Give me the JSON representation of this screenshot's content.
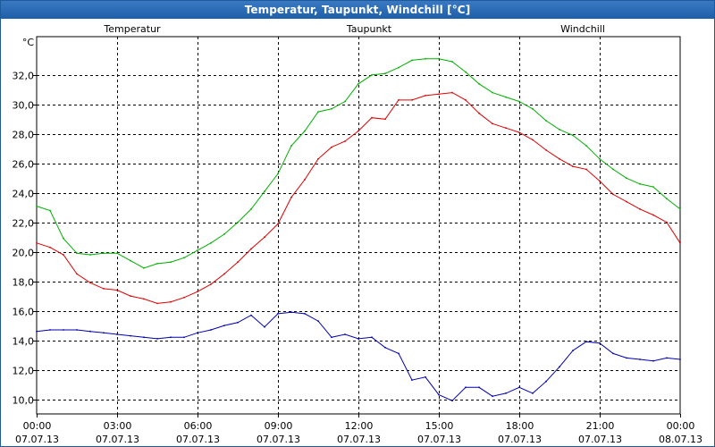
{
  "window": {
    "title": "Temperatur, Taupunkt, Windchill [°C]"
  },
  "chart_data": {
    "type": "line",
    "title": "Temperatur, Taupunkt, Windchill [°C]",
    "ylabel": "°C",
    "ylim": [
      9.0,
      34.6
    ],
    "xlim_hours": [
      0,
      24
    ],
    "grid": true,
    "y_ticks": [
      "10,0",
      "12,0",
      "14,0",
      "16,0",
      "18,0",
      "20,0",
      "22,0",
      "24,0",
      "26,0",
      "28,0",
      "30,0",
      "32,0"
    ],
    "x_ticks": [
      {
        "time": "00:00",
        "date": "07.07.13"
      },
      {
        "time": "03:00",
        "date": "07.07.13"
      },
      {
        "time": "06:00",
        "date": "07.07.13"
      },
      {
        "time": "09:00",
        "date": "07.07.13"
      },
      {
        "time": "12:00",
        "date": "07.07.13"
      },
      {
        "time": "15:00",
        "date": "07.07.13"
      },
      {
        "time": "18:00",
        "date": "07.07.13"
      },
      {
        "time": "21:00",
        "date": "07.07.13"
      },
      {
        "time": "00:00",
        "date": "08.07.13"
      }
    ],
    "legend_placement": "top",
    "series": [
      {
        "name": "Temperatur",
        "color": "#e00000",
        "x": [
          0,
          0.5,
          1,
          1.5,
          2,
          2.5,
          3,
          3.5,
          4,
          4.5,
          5,
          5.5,
          6,
          6.5,
          7,
          7.5,
          8,
          8.5,
          9,
          9.5,
          10,
          10.5,
          11,
          11.5,
          12,
          12.5,
          13,
          13.5,
          14,
          14.5,
          15,
          15.5,
          16,
          16.5,
          17,
          17.5,
          18,
          18.5,
          19,
          19.5,
          20,
          20.5,
          21,
          21.5,
          22,
          22.5,
          23,
          23.5,
          24
        ],
        "values": [
          20.6,
          20.3,
          19.8,
          18.5,
          17.9,
          17.5,
          17.4,
          17.0,
          16.8,
          16.5,
          16.6,
          16.9,
          17.3,
          17.8,
          18.5,
          19.3,
          20.2,
          21.0,
          21.9,
          23.7,
          24.9,
          26.3,
          27.1,
          27.5,
          28.2,
          29.1,
          29.0,
          30.3,
          30.3,
          30.6,
          30.7,
          30.8,
          30.3,
          29.4,
          28.7,
          28.4,
          28.1,
          27.6,
          26.9,
          26.3,
          25.8,
          25.6,
          24.8,
          23.9,
          23.4,
          22.9,
          22.5,
          22.0,
          20.6
        ]
      },
      {
        "name": "Taupunkt",
        "color": "#0000b0",
        "x": [
          0,
          0.5,
          1,
          1.5,
          2,
          2.5,
          3,
          3.5,
          4,
          4.5,
          5,
          5.5,
          6,
          6.5,
          7,
          7.5,
          8,
          8.5,
          9,
          9.5,
          10,
          10.5,
          11,
          11.5,
          12,
          12.5,
          13,
          13.5,
          14,
          14.5,
          15,
          15.5,
          16,
          16.5,
          17,
          17.5,
          18,
          18.5,
          19,
          19.5,
          20,
          20.5,
          21,
          21.5,
          22,
          22.5,
          23,
          23.5,
          24
        ],
        "values": [
          14.6,
          14.7,
          14.7,
          14.7,
          14.6,
          14.5,
          14.4,
          14.3,
          14.2,
          14.1,
          14.2,
          14.2,
          14.5,
          14.7,
          15.0,
          15.2,
          15.7,
          14.9,
          15.8,
          15.9,
          15.8,
          15.3,
          14.2,
          14.4,
          14.1,
          14.2,
          13.5,
          13.1,
          11.3,
          11.5,
          10.3,
          9.9,
          10.8,
          10.8,
          10.2,
          10.4,
          10.8,
          10.4,
          11.2,
          12.2,
          13.3,
          13.9,
          13.8,
          13.1,
          12.8,
          12.7,
          12.6,
          12.8,
          12.7
        ]
      },
      {
        "name": "Windchill",
        "color": "#00b000",
        "x": [
          0,
          0.5,
          1,
          1.5,
          2,
          2.5,
          3,
          3.5,
          4,
          4.5,
          5,
          5.5,
          6,
          6.5,
          7,
          7.5,
          8,
          8.5,
          9,
          9.5,
          10,
          10.5,
          11,
          11.5,
          12,
          12.5,
          13,
          13.5,
          14,
          14.5,
          15,
          15.5,
          16,
          16.5,
          17,
          17.5,
          18,
          18.5,
          19,
          19.5,
          20,
          20.5,
          21,
          21.5,
          22,
          22.5,
          23,
          23.5,
          24
        ],
        "values": [
          23.1,
          22.8,
          20.9,
          19.9,
          19.8,
          19.9,
          19.9,
          19.4,
          18.9,
          19.2,
          19.3,
          19.6,
          20.1,
          20.6,
          21.2,
          22.0,
          22.9,
          24.1,
          25.3,
          27.2,
          28.2,
          29.5,
          29.7,
          30.2,
          31.4,
          32.0,
          32.1,
          32.5,
          33.0,
          33.1,
          33.1,
          32.9,
          32.2,
          31.4,
          30.8,
          30.5,
          30.2,
          29.7,
          28.9,
          28.3,
          27.9,
          27.2,
          26.3,
          25.6,
          25.0,
          24.6,
          24.4,
          23.6,
          22.9
        ]
      }
    ]
  }
}
